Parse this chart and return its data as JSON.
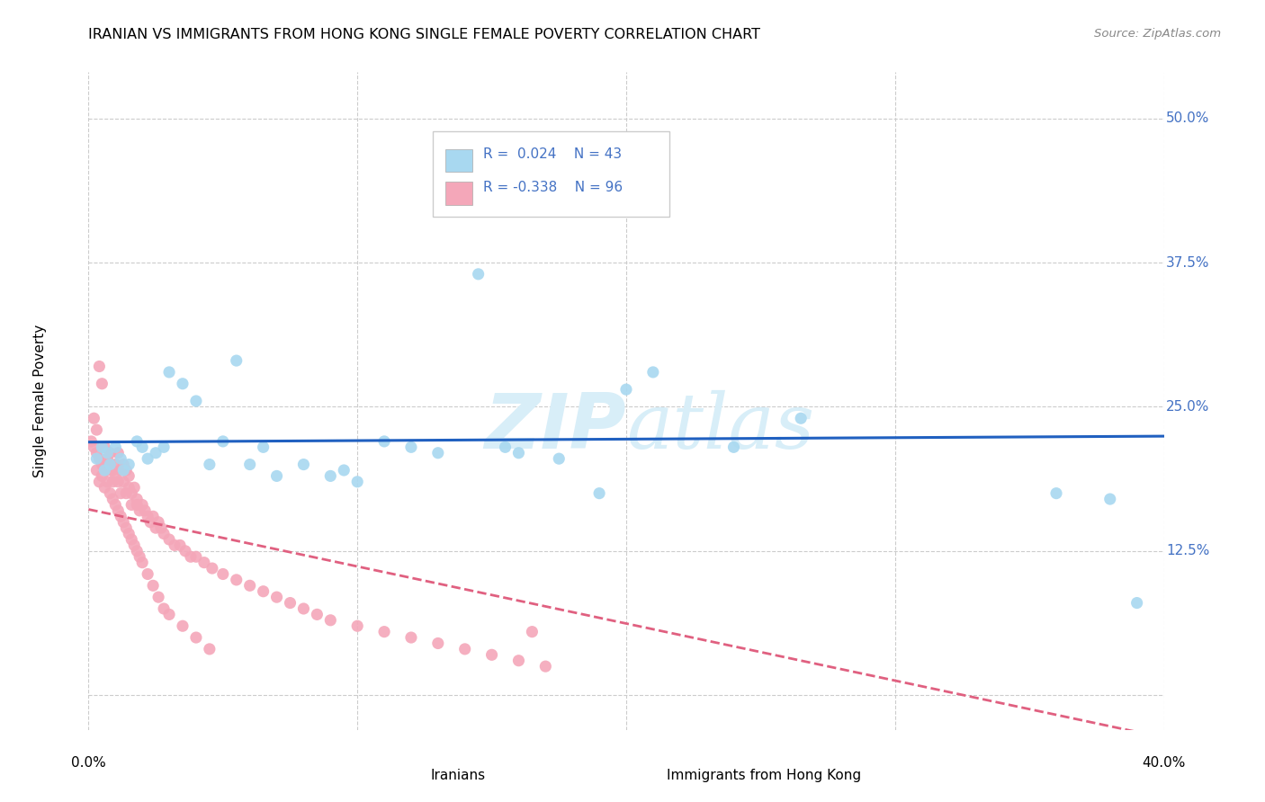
{
  "title": "IRANIAN VS IMMIGRANTS FROM HONG KONG SINGLE FEMALE POVERTY CORRELATION CHART",
  "source": "Source: ZipAtlas.com",
  "ylabel": "Single Female Poverty",
  "xmin": 0.0,
  "xmax": 0.4,
  "ymin": -0.03,
  "ymax": 0.54,
  "label1": "Iranians",
  "label2": "Immigrants from Hong Kong",
  "color1": "#A8D8F0",
  "color2": "#F4A7B9",
  "line1_color": "#2060C0",
  "line2_color": "#E06080",
  "watermark_color": "#D8EEF8",
  "iranians_x": [
    0.003,
    0.005,
    0.006,
    0.007,
    0.008,
    0.01,
    0.012,
    0.013,
    0.015,
    0.018,
    0.02,
    0.022,
    0.025,
    0.028,
    0.03,
    0.035,
    0.04,
    0.045,
    0.05,
    0.055,
    0.06,
    0.065,
    0.07,
    0.08,
    0.09,
    0.095,
    0.1,
    0.11,
    0.12,
    0.13,
    0.135,
    0.145,
    0.155,
    0.16,
    0.175,
    0.19,
    0.2,
    0.21,
    0.24,
    0.265,
    0.36,
    0.38,
    0.39
  ],
  "iranians_y": [
    0.205,
    0.215,
    0.195,
    0.21,
    0.2,
    0.215,
    0.205,
    0.195,
    0.2,
    0.22,
    0.215,
    0.205,
    0.21,
    0.215,
    0.28,
    0.27,
    0.255,
    0.2,
    0.22,
    0.29,
    0.2,
    0.215,
    0.19,
    0.2,
    0.19,
    0.195,
    0.185,
    0.22,
    0.215,
    0.21,
    0.455,
    0.365,
    0.215,
    0.21,
    0.205,
    0.175,
    0.265,
    0.28,
    0.215,
    0.24,
    0.175,
    0.17,
    0.08
  ],
  "hk_x": [
    0.001,
    0.002,
    0.002,
    0.003,
    0.003,
    0.004,
    0.004,
    0.005,
    0.005,
    0.006,
    0.006,
    0.007,
    0.007,
    0.008,
    0.008,
    0.009,
    0.009,
    0.01,
    0.01,
    0.011,
    0.011,
    0.012,
    0.012,
    0.013,
    0.013,
    0.014,
    0.014,
    0.015,
    0.015,
    0.016,
    0.016,
    0.017,
    0.018,
    0.018,
    0.019,
    0.02,
    0.021,
    0.022,
    0.023,
    0.024,
    0.025,
    0.026,
    0.027,
    0.028,
    0.03,
    0.032,
    0.034,
    0.036,
    0.038,
    0.04,
    0.043,
    0.046,
    0.05,
    0.055,
    0.06,
    0.065,
    0.07,
    0.075,
    0.08,
    0.085,
    0.09,
    0.1,
    0.11,
    0.12,
    0.13,
    0.14,
    0.15,
    0.16,
    0.165,
    0.17,
    0.003,
    0.004,
    0.005,
    0.006,
    0.007,
    0.008,
    0.009,
    0.01,
    0.011,
    0.012,
    0.013,
    0.014,
    0.015,
    0.016,
    0.017,
    0.018,
    0.019,
    0.02,
    0.022,
    0.024,
    0.026,
    0.028,
    0.03,
    0.035,
    0.04,
    0.045
  ],
  "hk_y": [
    0.22,
    0.215,
    0.24,
    0.21,
    0.23,
    0.205,
    0.285,
    0.2,
    0.27,
    0.215,
    0.2,
    0.205,
    0.195,
    0.21,
    0.2,
    0.195,
    0.185,
    0.2,
    0.19,
    0.185,
    0.21,
    0.195,
    0.175,
    0.2,
    0.185,
    0.195,
    0.175,
    0.19,
    0.18,
    0.175,
    0.165,
    0.18,
    0.17,
    0.165,
    0.16,
    0.165,
    0.16,
    0.155,
    0.15,
    0.155,
    0.145,
    0.15,
    0.145,
    0.14,
    0.135,
    0.13,
    0.13,
    0.125,
    0.12,
    0.12,
    0.115,
    0.11,
    0.105,
    0.1,
    0.095,
    0.09,
    0.085,
    0.08,
    0.075,
    0.07,
    0.065,
    0.06,
    0.055,
    0.05,
    0.045,
    0.04,
    0.035,
    0.03,
    0.055,
    0.025,
    0.195,
    0.185,
    0.19,
    0.18,
    0.185,
    0.175,
    0.17,
    0.165,
    0.16,
    0.155,
    0.15,
    0.145,
    0.14,
    0.135,
    0.13,
    0.125,
    0.12,
    0.115,
    0.105,
    0.095,
    0.085,
    0.075,
    0.07,
    0.06,
    0.05,
    0.04
  ]
}
